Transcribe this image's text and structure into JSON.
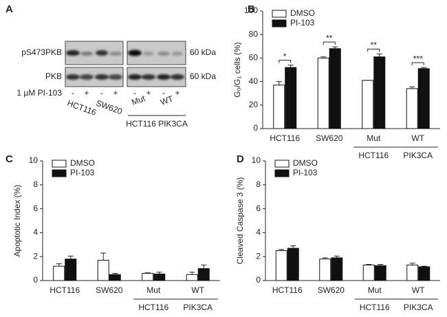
{
  "blot": {
    "panel_label": "A",
    "rows": [
      {
        "label": "pS473PKB",
        "size": "60 kDa"
      },
      {
        "label": "PKB",
        "size": "60 kDa"
      }
    ],
    "treatment_label": "1 μM PI-103",
    "lane_signs": [
      "-",
      "+",
      "-",
      "+",
      "-",
      "+",
      "-",
      "+"
    ],
    "cell_lines": [
      "HCT116",
      "SW620",
      "Mut",
      "WT"
    ],
    "group_label": "HCT116 PIK3CA"
  },
  "chart_data": [
    {
      "type": "bar",
      "panel_label": "B",
      "y_label": "G₀/G₁ cells (%)",
      "categories": [
        "HCT116",
        "SW620",
        "Mut",
        "WT"
      ],
      "group_labels": [
        "HCT116",
        "PIK3CA"
      ],
      "series": [
        {
          "name": "DMSO",
          "color": "#ffffff",
          "values": [
            37,
            60,
            41,
            34
          ],
          "errors": [
            3,
            1,
            0,
            1.5
          ]
        },
        {
          "name": "PI-103",
          "color": "#111111",
          "values": [
            52,
            68,
            61,
            51
          ],
          "errors": [
            2,
            1.5,
            2.5,
            1
          ]
        }
      ],
      "significance": [
        "*",
        "**",
        "**",
        "***"
      ],
      "ylim": [
        0,
        100
      ],
      "yticks": [
        0,
        20,
        40,
        60,
        80,
        100
      ]
    },
    {
      "type": "bar",
      "panel_label": "C",
      "y_label": "Apoptotic Index (%)",
      "categories": [
        "HCT116",
        "SW620",
        "Mut",
        "WT"
      ],
      "group_labels": [
        "HCT116",
        "PIK3CA"
      ],
      "series": [
        {
          "name": "DMSO",
          "color": "#ffffff",
          "values": [
            1.2,
            1.7,
            0.6,
            0.5
          ],
          "errors": [
            0.2,
            0.6,
            0.05,
            0.2
          ]
        },
        {
          "name": "PI-103",
          "color": "#111111",
          "values": [
            1.8,
            0.5,
            0.55,
            1.0
          ],
          "errors": [
            0.25,
            0.1,
            0.15,
            0.3
          ]
        }
      ],
      "ylim": [
        0,
        10
      ],
      "yticks": [
        0,
        2,
        4,
        6,
        8,
        10
      ]
    },
    {
      "type": "bar",
      "panel_label": "D",
      "y_label": "Cleaved Caspase 3 (%)",
      "categories": [
        "HCT116",
        "SW620",
        "Mut",
        "WT"
      ],
      "group_labels": [
        "HCT116",
        "PIK3CA"
      ],
      "series": [
        {
          "name": "DMSO",
          "color": "#ffffff",
          "values": [
            2.5,
            1.8,
            1.3,
            1.3
          ],
          "errors": [
            0.1,
            0.1,
            0.05,
            0.15
          ]
        },
        {
          "name": "PI-103",
          "color": "#111111",
          "values": [
            2.7,
            1.9,
            1.25,
            1.15
          ],
          "errors": [
            0.2,
            0.15,
            0.1,
            0.05
          ]
        }
      ],
      "ylim": [
        0,
        10
      ],
      "yticks": [
        0,
        2,
        4,
        6,
        8,
        10
      ]
    }
  ]
}
